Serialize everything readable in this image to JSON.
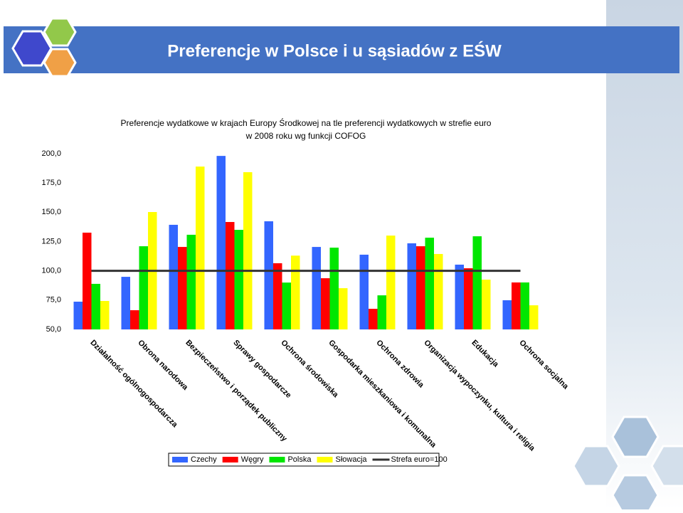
{
  "slide_title": "Preferencje w Polsce i u sąsiadów z EŚW",
  "chart_data": {
    "type": "bar",
    "title": [
      "Preferencje wydatkowe w krajach Europy Środkowej na tle preferencji wydatkowych w strefie euro",
      "w 2008 roku wg funkcji COFOG"
    ],
    "categories": [
      "Działalność ogólnogospodarcza",
      "Obrona narodowa",
      "Bezpieczeństwo i porządek publiczny",
      "Sprawy gospodarcze",
      "Ochrona środowiska",
      "Gospodarka mieszkaniowa i komunalna",
      "Ochrona zdrowia",
      "Organizacja wypoczynku, kultura i religia",
      "Edukacja",
      "Ochrona socjalna"
    ],
    "series": [
      {
        "name": "Czechy",
        "color": "#3366ff",
        "values": [
          73.7,
          94.9,
          139.3,
          198.1,
          142.3,
          120.4,
          113.8,
          123.5,
          105.3,
          74.9
        ]
      },
      {
        "name": "Węgry",
        "color": "#ff0000",
        "values": [
          132.6,
          66.4,
          120.4,
          141.7,
          106.5,
          93.7,
          67.6,
          121.0,
          102.2,
          90.1
        ]
      },
      {
        "name": "Polska",
        "color": "#00e600",
        "values": [
          88.9,
          121.0,
          130.8,
          135.0,
          90.0,
          119.8,
          79.1,
          128.3,
          129.5,
          90.1
        ]
      },
      {
        "name": "Słowacja",
        "color": "#ffff00",
        "values": [
          74.3,
          150.2,
          189.0,
          184.2,
          113.0,
          85.2,
          130.1,
          114.4,
          92.5,
          70.6
        ]
      },
      {
        "name": "Strefa euro=100",
        "type": "line",
        "color": "#333333",
        "values": [
          100,
          100,
          100,
          100,
          100,
          100,
          100,
          100,
          100,
          100
        ]
      }
    ],
    "ylim": [
      50,
      200
    ],
    "yticks": [
      {
        "value": 50,
        "label": "50,0"
      },
      {
        "value": 75,
        "label": "75,0"
      },
      {
        "value": 100,
        "label": "100,0"
      },
      {
        "value": 125,
        "label": "125,0"
      },
      {
        "value": 150,
        "label": "150,0"
      },
      {
        "value": 175,
        "label": "175,0"
      },
      {
        "value": 200,
        "label": "200,0"
      }
    ],
    "legend": "bottom"
  }
}
